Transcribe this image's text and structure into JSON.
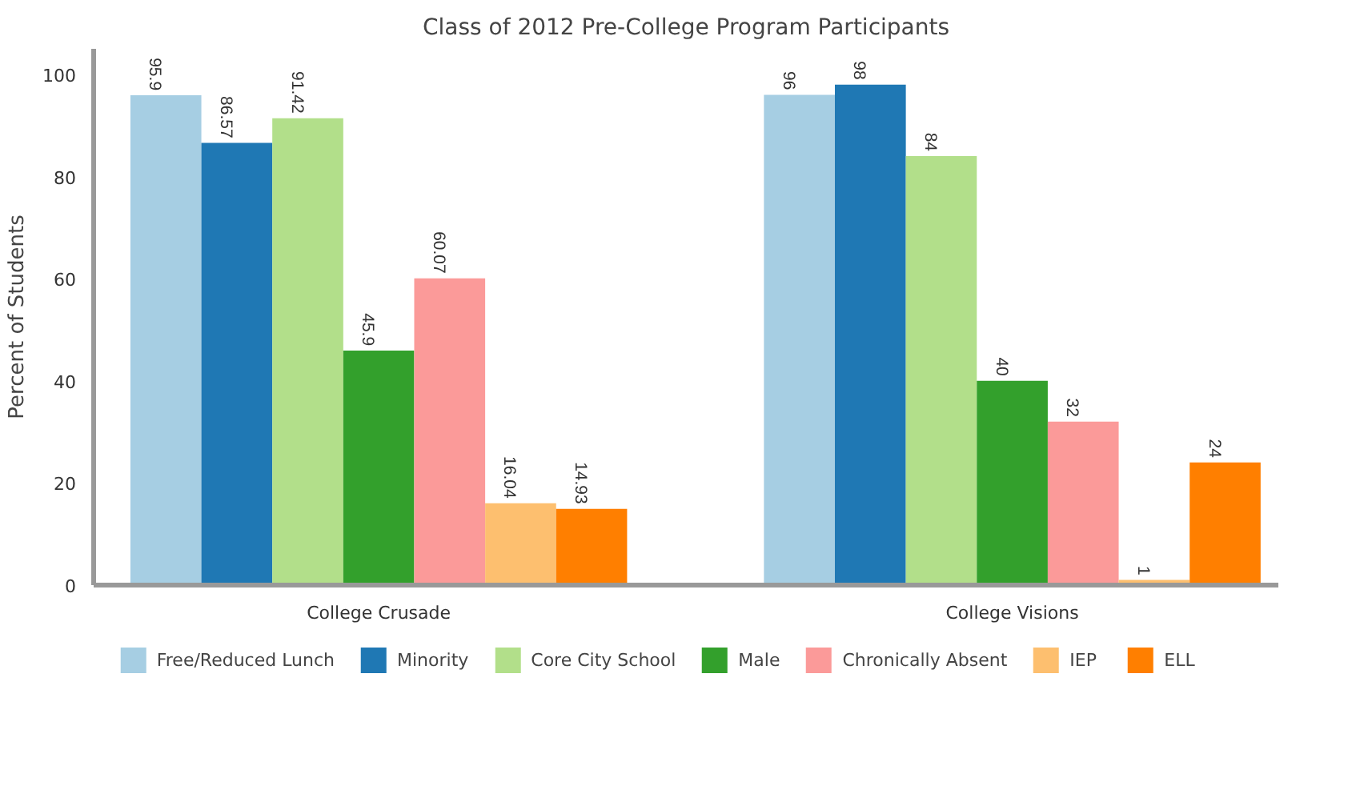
{
  "chart_data": {
    "type": "bar",
    "title": "Class of 2012 Pre-College Program Participants",
    "ylabel": "Percent of Students",
    "categories": [
      "College Crusade",
      "College Visions"
    ],
    "series": [
      {
        "name": "Free/Reduced Lunch",
        "color": "#a6cee3",
        "values": [
          95.9,
          96
        ]
      },
      {
        "name": "Minority",
        "color": "#1f78b4",
        "values": [
          86.57,
          98
        ]
      },
      {
        "name": "Core City School",
        "color": "#b2df8a",
        "values": [
          91.42,
          84
        ]
      },
      {
        "name": "Male",
        "color": "#33a02c",
        "values": [
          45.9,
          40
        ]
      },
      {
        "name": "Chronically Absent",
        "color": "#fb9a99",
        "values": [
          60.07,
          32
        ]
      },
      {
        "name": "IEP",
        "color": "#fdbf6f",
        "values": [
          16.04,
          1
        ]
      },
      {
        "name": "ELL",
        "color": "#ff7f00",
        "values": [
          14.93,
          24
        ]
      }
    ],
    "ylim": [
      0,
      105
    ],
    "yticks": [
      0,
      20,
      40,
      60,
      80,
      100
    ],
    "data_labels": true,
    "grid": false,
    "legend": "bottom"
  }
}
